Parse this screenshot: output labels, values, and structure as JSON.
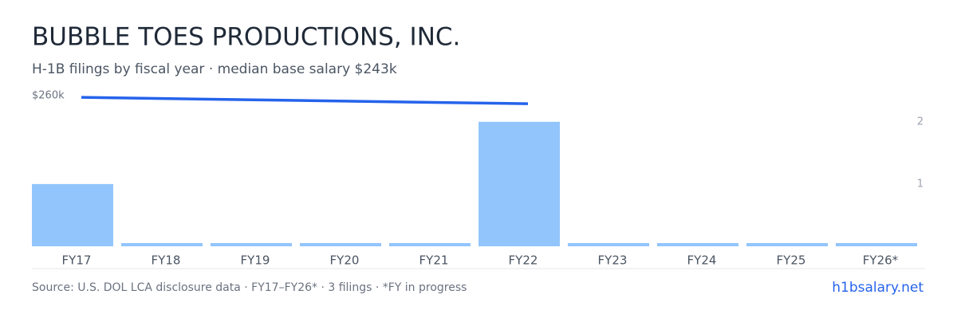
{
  "chart_data": {
    "type": "bar",
    "title": "BUBBLE TOES PRODUCTIONS, INC.",
    "subtitle": "H-1B filings by fiscal year · median base salary $243k",
    "categories": [
      "FY17",
      "FY18",
      "FY19",
      "FY20",
      "FY21",
      "FY22",
      "FY23",
      "FY24",
      "FY25",
      "FY26*"
    ],
    "series": [
      {
        "type": "bar",
        "color": "#93c5fd",
        "axis": "y2",
        "values": [
          1,
          0,
          0,
          0,
          0,
          2,
          0,
          0,
          0,
          0
        ]
      },
      {
        "type": "line",
        "color": "#2563eb",
        "axis": "y",
        "x": [
          "FY17",
          "FY22"
        ],
        "values": [
          257000,
          246000
        ]
      }
    ],
    "ylim": [
      0,
      260000
    ],
    "yticks": [
      {
        "value": 260000,
        "label": "$260k"
      }
    ],
    "y2lim": [
      0,
      2.42
    ],
    "y2ticks": [
      2,
      1
    ],
    "source": "Source: U.S. DOL LCA disclosure data · FY17–FY26* · 3 filings · *FY in progress",
    "site": "h1bsalary.net"
  }
}
